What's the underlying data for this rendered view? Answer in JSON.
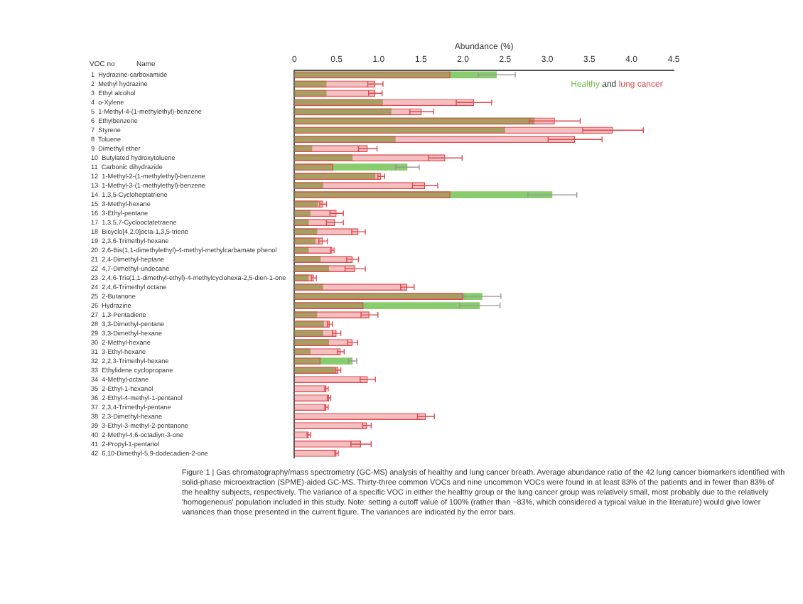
{
  "chart_data": {
    "type": "bar",
    "orientation": "horizontal",
    "xlabel": "Abundance (%)",
    "categories": [
      "1  Hydrazine-carboxamide",
      "2  Methyl hydrazine",
      "3  Ethyl alcohol",
      "4  o-Xylene",
      "5  1-Methyl-4-(1-methylethyl)-benzene",
      "6  Ethylbenzene",
      "7  Styrene",
      "8  Toluene",
      "9  Dimethyl ether",
      "10  Butylated hydroxytoluene",
      "11  Carbonic dihydrazide",
      "12  1-Methyl-2-(1-methylethyl)-benzene",
      "13  1-Methyl-3-(1-methylethyl)-benzene",
      "14  1,3,5-Cycloheptatriene",
      "15  3-Methyl-hexane",
      "16  3-Ethyl-pentane",
      "17  1,3,5,7-Cyclooctatetraene",
      "18  Bicyclo[4.2.0]octa-1,3,5-triene",
      "19  2,3,6-Trimethyl-hexane",
      "20  2,6-Bis(1,1-dimethylethyl)-4-methyl-methylcarbamate phenol",
      "21  2,4-Dimethyl-heptane",
      "22  4,7-Dimethyl-undecane",
      "23  2,4,6-Tris(1,1-dimethyl-ethyl)-4-methylcyclohexa-2,5-dien-1-one",
      "24  2,4,6-Trimethyl octane",
      "25  2-Butanone",
      "26  Hydrazine",
      "27  1,3-Pentadiene",
      "28  3,3-Dimethyl-pentane",
      "29  3,3-Dimethyl-hexane",
      "30  2-Methyl-hexane",
      "31  3-Ethyl-hexane",
      "32  2,2,3-Trimethyl-hexane",
      "33  Ethylidene cyclopropane",
      "34  4-Methyl-octane",
      "35  2-Ethyl-1-hexanol",
      "36  2-Ethyl-4-methyl-1-pentanol",
      "37  2,3,4-Trimethyl-pentane",
      "38  2,3-Dimethyl-hexane",
      "39  3-Ethyl-3-methyl-2-pentanone",
      "40  2-Methyl-4,6-octadiyn-3-one",
      "41  2-Propyl-1-pentanol",
      "42  6,10-Dimethyl-5,9-dodecadien-2-one"
    ],
    "series": [
      {
        "name": "Healthy",
        "color": "#6cbf4a",
        "values": [
          2.4,
          0.38,
          0.38,
          1.05,
          1.15,
          2.85,
          2.5,
          1.2,
          0.21,
          0.69,
          1.34,
          0.96,
          0.34,
          3.06,
          0.28,
          0.19,
          0.17,
          0.27,
          0.25,
          0.17,
          0.31,
          0.41,
          0.17,
          0.34,
          2.23,
          2.2,
          0.27,
          0.35,
          0.34,
          0.41,
          0.19,
          0.69,
          0.48,
          null,
          null,
          null,
          null,
          null,
          null,
          null,
          null,
          null
        ],
        "errors": [
          0.22,
          null,
          null,
          null,
          null,
          null,
          null,
          null,
          null,
          null,
          0.14,
          null,
          null,
          0.29,
          null,
          null,
          null,
          null,
          null,
          null,
          null,
          null,
          null,
          null,
          0.22,
          0.24,
          null,
          null,
          null,
          null,
          null,
          0.05,
          null,
          null,
          null,
          null,
          null,
          null,
          null,
          null,
          null,
          null
        ]
      },
      {
        "name": "lung cancer",
        "color": "#e0474c",
        "values": [
          1.85,
          0.96,
          0.96,
          2.13,
          1.51,
          3.09,
          3.78,
          3.33,
          0.87,
          1.79,
          0.46,
          1.03,
          1.55,
          1.85,
          0.34,
          0.5,
          0.48,
          0.76,
          0.34,
          0.45,
          0.69,
          0.72,
          0.23,
          1.34,
          2.0,
          0.82,
          0.89,
          0.42,
          0.5,
          0.69,
          0.55,
          0.31,
          0.52,
          0.87,
          0.38,
          0.41,
          0.38,
          1.56,
          0.86,
          0.17,
          0.79,
          0.5
        ],
        "errors": [
          null,
          0.09,
          0.08,
          0.21,
          0.14,
          0.3,
          0.36,
          0.32,
          0.11,
          0.2,
          null,
          0.04,
          0.15,
          null,
          0.04,
          0.08,
          0.1,
          0.08,
          0.05,
          0.02,
          0.07,
          0.12,
          0.03,
          0.08,
          null,
          null,
          0.1,
          0.03,
          0.05,
          0.06,
          0.04,
          null,
          0.03,
          0.09,
          0.02,
          0.02,
          0.02,
          0.1,
          0.05,
          0.02,
          0.12,
          0.02
        ]
      }
    ],
    "xlim": [
      0,
      4.5
    ],
    "xticks": [
      0,
      0.5,
      {
        "value": 1,
        "label": "1.0"
      },
      1.5,
      {
        "value": 2,
        "label": "2.0"
      },
      2.5,
      {
        "value": 3,
        "label": "3.0"
      },
      3.5,
      {
        "value": 4,
        "label": "4.0"
      },
      4.5
    ],
    "legend": "top right",
    "grid": false,
    "annotations": [
      "VOC no",
      "Name",
      "and",
      "Figure 1 | Gas chromatography/mass spectrometry (GC-MS) analysis of healthy and lung cancer breath. Average abundance ratio of the 42 lung cancer biomarkers identified with solid-phase microextraction (SPME)-aided GC-MS. Thirty-three common VOCs and nine uncommon VOCs were found in at least 83% of the patients and in fewer than 83% of the healthy subjects, respectively. The variance of a specific VOC in either the healthy group or the lung cancer group was relatively small, most probably due to the relatively 'homogeneous' population included in this study. Note: setting a cutoff value of 100% (rather than ~83%, which considered a typical value in the literature) would give lower variances than those presented in the current figure. The variances are indicated by the error bars."
    ]
  }
}
